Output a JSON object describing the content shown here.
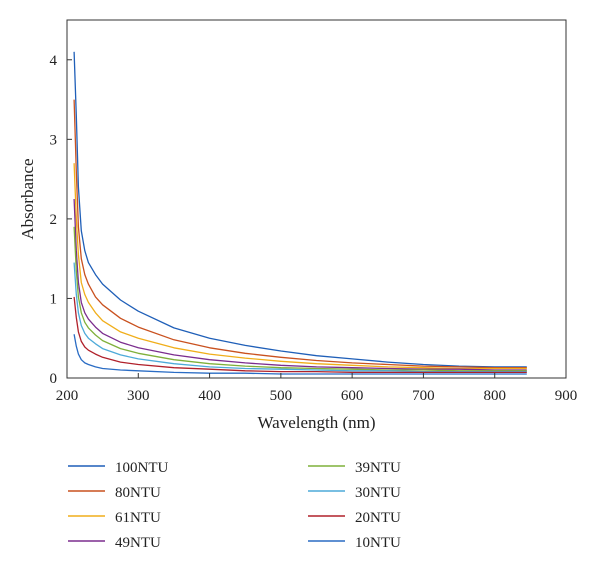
{
  "chart_data": {
    "type": "line",
    "title": "",
    "xlabel": "Wavelength (nm)",
    "ylabel": "Absorbance",
    "xlim": [
      200,
      900
    ],
    "ylim": [
      0,
      4.5
    ],
    "xticks": [
      200,
      300,
      400,
      500,
      600,
      700,
      800,
      900
    ],
    "yticks": [
      0,
      1,
      2,
      3,
      4
    ],
    "grid": false,
    "legend_position": "bottom",
    "x": [
      210,
      213,
      216,
      220,
      225,
      230,
      240,
      250,
      275,
      300,
      350,
      400,
      450,
      500,
      550,
      600,
      650,
      700,
      750,
      800,
      845
    ],
    "series": [
      {
        "name": "100NTU",
        "color": "#1f5fb8",
        "values": [
          4.1,
          3.3,
          2.4,
          1.85,
          1.6,
          1.45,
          1.3,
          1.18,
          0.98,
          0.84,
          0.63,
          0.5,
          0.41,
          0.34,
          0.28,
          0.24,
          0.2,
          0.17,
          0.15,
          0.14,
          0.14
        ]
      },
      {
        "name": "80NTU",
        "color": "#c9511f",
        "values": [
          3.5,
          2.6,
          1.9,
          1.5,
          1.3,
          1.18,
          1.02,
          0.92,
          0.75,
          0.64,
          0.48,
          0.38,
          0.31,
          0.26,
          0.22,
          0.19,
          0.17,
          0.15,
          0.14,
          0.13,
          0.13
        ]
      },
      {
        "name": "61NTU",
        "color": "#f0ae1a",
        "values": [
          2.7,
          2.0,
          1.55,
          1.2,
          1.05,
          0.95,
          0.82,
          0.72,
          0.58,
          0.5,
          0.38,
          0.3,
          0.25,
          0.21,
          0.18,
          0.16,
          0.14,
          0.13,
          0.12,
          0.12,
          0.12
        ]
      },
      {
        "name": "49NTU",
        "color": "#7b2d8e",
        "values": [
          2.25,
          1.6,
          1.2,
          0.95,
          0.82,
          0.74,
          0.64,
          0.56,
          0.45,
          0.38,
          0.29,
          0.23,
          0.19,
          0.16,
          0.14,
          0.13,
          0.12,
          0.11,
          0.11,
          0.1,
          0.1
        ]
      },
      {
        "name": "39NTU",
        "color": "#7fb03a",
        "values": [
          1.9,
          1.35,
          1.02,
          0.82,
          0.7,
          0.63,
          0.54,
          0.47,
          0.37,
          0.31,
          0.23,
          0.18,
          0.15,
          0.13,
          0.12,
          0.11,
          0.1,
          0.1,
          0.09,
          0.09,
          0.09
        ]
      },
      {
        "name": "30NTU",
        "color": "#4daad9",
        "values": [
          1.45,
          1.05,
          0.82,
          0.66,
          0.56,
          0.5,
          0.43,
          0.37,
          0.29,
          0.24,
          0.18,
          0.14,
          0.12,
          0.11,
          0.1,
          0.09,
          0.09,
          0.08,
          0.08,
          0.08,
          0.08
        ]
      },
      {
        "name": "20NTU",
        "color": "#b0202a",
        "values": [
          1.02,
          0.76,
          0.58,
          0.46,
          0.39,
          0.35,
          0.3,
          0.26,
          0.2,
          0.17,
          0.13,
          0.11,
          0.09,
          0.08,
          0.08,
          0.07,
          0.07,
          0.07,
          0.07,
          0.07,
          0.07
        ]
      },
      {
        "name": "10NTU",
        "color": "#2a6cc4",
        "values": [
          0.55,
          0.4,
          0.3,
          0.23,
          0.19,
          0.17,
          0.14,
          0.12,
          0.1,
          0.09,
          0.07,
          0.06,
          0.06,
          0.05,
          0.05,
          0.05,
          0.05,
          0.05,
          0.05,
          0.05,
          0.05
        ]
      }
    ]
  }
}
